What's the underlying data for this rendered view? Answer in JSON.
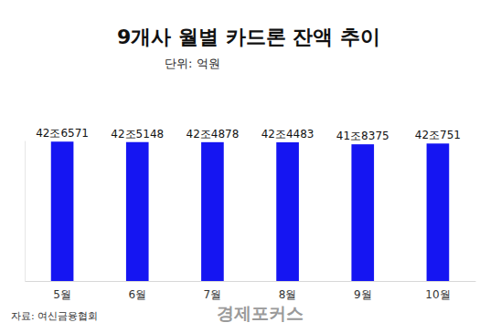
{
  "chart_data": {
    "type": "bar",
    "title": "9개사 월별 카드론 잔액 추이",
    "subtitle": "단위: 억원",
    "categories": [
      "5월",
      "6월",
      "7월",
      "8월",
      "9월",
      "10월"
    ],
    "values": [
      426571,
      425148,
      424878,
      424483,
      418375,
      420751
    ],
    "value_labels": [
      "42조6571",
      "42조5148",
      "42조4878",
      "42조4483",
      "41조8375",
      "42조751"
    ],
    "color": "#1515f2",
    "ylim": [
      0,
      430000
    ],
    "grid": false,
    "data_labels": true,
    "tick_labels": "x",
    "source": "자료: 여신금융협회",
    "watermark": "경제포커스"
  }
}
